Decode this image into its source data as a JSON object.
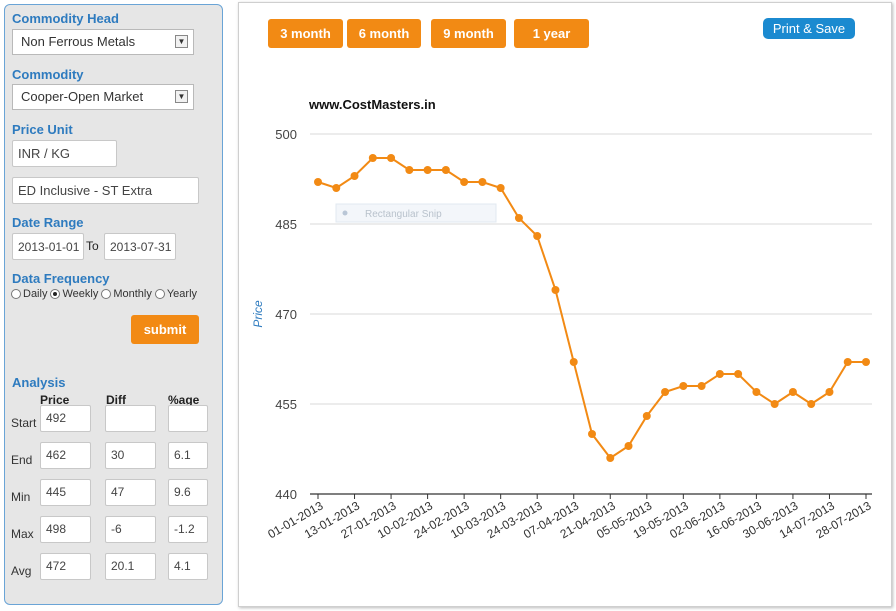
{
  "form": {
    "commodity_head_label": "Commodity Head",
    "commodity_head_value": "Non Ferrous Metals",
    "commodity_label": "Commodity",
    "commodity_value": "Cooper-Open Market",
    "price_unit_label": "Price Unit",
    "price_unit_value": "INR / KG",
    "tax_value": "ED Inclusive - ST Extra",
    "date_range_label": "Date Range",
    "date_from": "2013-01-01",
    "date_to_label": "To",
    "date_to": "2013-07-31",
    "data_frequency_label": "Data Frequency",
    "frequencies": [
      "Daily",
      "Weekly",
      "Monthly",
      "Yearly"
    ],
    "selected_frequency": "Weekly",
    "submit_label": "submit"
  },
  "analysis": {
    "title": "Analysis",
    "columns": [
      "Price",
      "Diff",
      "%age"
    ],
    "rows": [
      {
        "label": "Start",
        "price": "492",
        "diff": "",
        "pct": ""
      },
      {
        "label": "End",
        "price": "462",
        "diff": "30",
        "pct": "6.1"
      },
      {
        "label": "Min",
        "price": "445",
        "diff": "47",
        "pct": "9.6"
      },
      {
        "label": "Max",
        "price": "498",
        "diff": "-6",
        "pct": "-1.2"
      },
      {
        "label": "Avg",
        "price": "472",
        "diff": "20.1",
        "pct": "4.1"
      }
    ]
  },
  "period_buttons": [
    "3 month",
    "6 month",
    "9 month",
    "1 year"
  ],
  "print_label": "Print & Save",
  "watermark": "Rectangular Snip",
  "colors": {
    "accent": "#f28a14",
    "link": "#2e7bbf",
    "print": "#1b8ad0",
    "series": "#f28a14"
  },
  "chart_data": {
    "type": "line",
    "title": "www.CostMasters.in",
    "xlabel": "",
    "ylabel": "Price",
    "ylim": [
      440,
      500
    ],
    "yticks": [
      440,
      455,
      470,
      485,
      500
    ],
    "grid": true,
    "tick_labels": [
      "01-01-2013",
      "13-01-2013",
      "27-01-2013",
      "10-02-2013",
      "24-02-2013",
      "10-03-2013",
      "24-03-2013",
      "07-04-2013",
      "21-04-2013",
      "05-05-2013",
      "19-05-2013",
      "02-06-2013",
      "16-06-2013",
      "30-06-2013",
      "14-07-2013",
      "28-07-2013"
    ],
    "series": [
      {
        "values": [
          492,
          491,
          493,
          496,
          496,
          494,
          494,
          494,
          492,
          492,
          491,
          486,
          483,
          474,
          462,
          450,
          446,
          448,
          453,
          457,
          458,
          458,
          460,
          460,
          457,
          455,
          457,
          455,
          457,
          462,
          462
        ]
      }
    ]
  }
}
